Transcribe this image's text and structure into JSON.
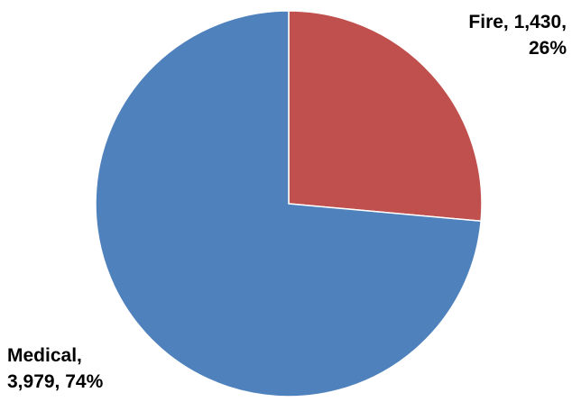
{
  "chart_data": {
    "type": "pie",
    "slices": [
      {
        "name": "Fire",
        "value": 1430,
        "percent": "26%",
        "color": "#C0504D",
        "label_line1": "Fire, 1,430,",
        "label_line2": "26%"
      },
      {
        "name": "Medical",
        "value": 3979,
        "percent": "74%",
        "color": "#4F81BD",
        "label_line1": "Medical,",
        "label_line2": "3,979, 74%"
      }
    ],
    "start": "12 o'clock",
    "direction": "clockwise",
    "legend": "none"
  }
}
